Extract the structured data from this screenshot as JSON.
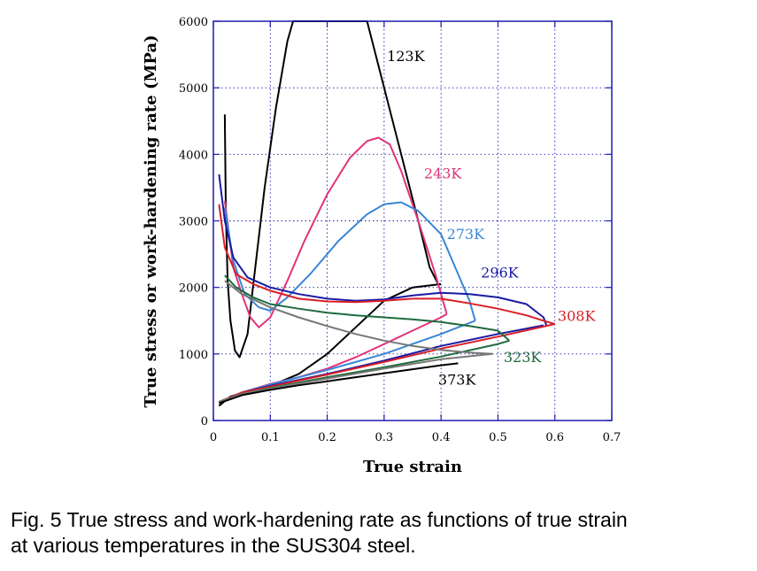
{
  "chart_data": {
    "type": "line",
    "xlabel": "True strain",
    "ylabel": "True stress or work-hardening rate (MPa)",
    "xlim": [
      0,
      0.7
    ],
    "ylim": [
      0,
      6000
    ],
    "xticks": [
      "0",
      "0.1",
      "0.2",
      "0.3",
      "0.4",
      "0.5",
      "0.6",
      "0.7"
    ],
    "yticks": [
      "0",
      "1000",
      "2000",
      "3000",
      "4000",
      "5000",
      "6000"
    ],
    "grid": true,
    "series": [
      {
        "name": "123K",
        "color": "#000000",
        "stress": [
          [
            0.01,
            220
          ],
          [
            0.03,
            360
          ],
          [
            0.06,
            440
          ],
          [
            0.1,
            520
          ],
          [
            0.15,
            700
          ],
          [
            0.2,
            1000
          ],
          [
            0.25,
            1400
          ],
          [
            0.3,
            1800
          ],
          [
            0.35,
            2000
          ],
          [
            0.4,
            2050
          ]
        ],
        "hardening": [
          [
            0.02,
            4600
          ],
          [
            0.022,
            3100
          ],
          [
            0.025,
            2100
          ],
          [
            0.03,
            1500
          ],
          [
            0.038,
            1050
          ],
          [
            0.046,
            950
          ],
          [
            0.06,
            1300
          ],
          [
            0.075,
            2400
          ],
          [
            0.09,
            3500
          ],
          [
            0.11,
            4700
          ],
          [
            0.13,
            5700
          ],
          [
            0.14,
            6000
          ],
          [
            0.27,
            6000
          ],
          [
            0.3,
            5000
          ],
          [
            0.33,
            4000
          ],
          [
            0.36,
            3000
          ],
          [
            0.38,
            2300
          ],
          [
            0.395,
            2050
          ]
        ]
      },
      {
        "name": "243K",
        "color": "#e0337a",
        "stress": [
          [
            0.01,
            260
          ],
          [
            0.05,
            420
          ],
          [
            0.1,
            550
          ],
          [
            0.15,
            650
          ],
          [
            0.2,
            780
          ],
          [
            0.25,
            950
          ],
          [
            0.3,
            1150
          ],
          [
            0.35,
            1350
          ],
          [
            0.4,
            1550
          ],
          [
            0.41,
            1600
          ]
        ],
        "hardening": [
          [
            0.02,
            3300
          ],
          [
            0.035,
            2300
          ],
          [
            0.05,
            1900
          ],
          [
            0.065,
            1550
          ],
          [
            0.08,
            1400
          ],
          [
            0.1,
            1550
          ],
          [
            0.13,
            2100
          ],
          [
            0.16,
            2700
          ],
          [
            0.2,
            3400
          ],
          [
            0.24,
            3950
          ],
          [
            0.27,
            4200
          ],
          [
            0.29,
            4250
          ],
          [
            0.31,
            4150
          ],
          [
            0.33,
            3750
          ],
          [
            0.36,
            3000
          ],
          [
            0.39,
            2200
          ],
          [
            0.41,
            1600
          ]
        ]
      },
      {
        "name": "273K",
        "color": "#3a86d6",
        "stress": [
          [
            0.01,
            270
          ],
          [
            0.05,
            420
          ],
          [
            0.1,
            540
          ],
          [
            0.2,
            760
          ],
          [
            0.3,
            1000
          ],
          [
            0.4,
            1300
          ],
          [
            0.46,
            1500
          ]
        ],
        "hardening": [
          [
            0.02,
            3200
          ],
          [
            0.035,
            2400
          ],
          [
            0.055,
            1900
          ],
          [
            0.08,
            1700
          ],
          [
            0.1,
            1650
          ],
          [
            0.13,
            1850
          ],
          [
            0.17,
            2200
          ],
          [
            0.22,
            2700
          ],
          [
            0.27,
            3100
          ],
          [
            0.3,
            3250
          ],
          [
            0.33,
            3280
          ],
          [
            0.36,
            3150
          ],
          [
            0.4,
            2800
          ],
          [
            0.43,
            2200
          ],
          [
            0.45,
            1800
          ],
          [
            0.46,
            1500
          ]
        ]
      },
      {
        "name": "296K",
        "color": "#1a1aa3",
        "stress": [
          [
            0.01,
            280
          ],
          [
            0.05,
            420
          ],
          [
            0.1,
            520
          ],
          [
            0.2,
            700
          ],
          [
            0.3,
            900
          ],
          [
            0.4,
            1120
          ],
          [
            0.5,
            1300
          ],
          [
            0.58,
            1430
          ]
        ],
        "hardening": [
          [
            0.01,
            3700
          ],
          [
            0.02,
            3000
          ],
          [
            0.035,
            2450
          ],
          [
            0.06,
            2150
          ],
          [
            0.1,
            2000
          ],
          [
            0.15,
            1900
          ],
          [
            0.2,
            1830
          ],
          [
            0.25,
            1800
          ],
          [
            0.3,
            1820
          ],
          [
            0.35,
            1880
          ],
          [
            0.4,
            1920
          ],
          [
            0.45,
            1900
          ],
          [
            0.5,
            1850
          ],
          [
            0.55,
            1750
          ],
          [
            0.58,
            1550
          ],
          [
            0.585,
            1430
          ]
        ]
      },
      {
        "name": "308K",
        "color": "#d81f26",
        "stress": [
          [
            0.01,
            280
          ],
          [
            0.05,
            420
          ],
          [
            0.1,
            510
          ],
          [
            0.2,
            690
          ],
          [
            0.3,
            880
          ],
          [
            0.4,
            1080
          ],
          [
            0.5,
            1260
          ],
          [
            0.6,
            1450
          ]
        ],
        "hardening": [
          [
            0.01,
            3250
          ],
          [
            0.02,
            2600
          ],
          [
            0.04,
            2200
          ],
          [
            0.07,
            2050
          ],
          [
            0.1,
            1950
          ],
          [
            0.15,
            1830
          ],
          [
            0.2,
            1790
          ],
          [
            0.25,
            1780
          ],
          [
            0.3,
            1800
          ],
          [
            0.35,
            1830
          ],
          [
            0.4,
            1830
          ],
          [
            0.45,
            1760
          ],
          [
            0.5,
            1680
          ],
          [
            0.55,
            1580
          ],
          [
            0.58,
            1500
          ],
          [
            0.6,
            1450
          ]
        ]
      },
      {
        "name": "323K",
        "color": "#1e6b3c",
        "stress": [
          [
            0.01,
            280
          ],
          [
            0.05,
            400
          ],
          [
            0.1,
            490
          ],
          [
            0.2,
            650
          ],
          [
            0.3,
            800
          ],
          [
            0.4,
            960
          ],
          [
            0.5,
            1150
          ],
          [
            0.52,
            1200
          ]
        ],
        "hardening": [
          [
            0.02,
            2180
          ],
          [
            0.04,
            2000
          ],
          [
            0.07,
            1850
          ],
          [
            0.1,
            1750
          ],
          [
            0.15,
            1680
          ],
          [
            0.2,
            1620
          ],
          [
            0.25,
            1580
          ],
          [
            0.3,
            1550
          ],
          [
            0.35,
            1520
          ],
          [
            0.4,
            1480
          ],
          [
            0.45,
            1420
          ],
          [
            0.5,
            1350
          ],
          [
            0.52,
            1200
          ]
        ]
      },
      {
        "name": "",
        "color": "#777777",
        "stress": [
          [
            0.01,
            280
          ],
          [
            0.05,
            400
          ],
          [
            0.1,
            480
          ],
          [
            0.2,
            630
          ],
          [
            0.3,
            780
          ],
          [
            0.4,
            920
          ],
          [
            0.49,
            1000
          ]
        ],
        "hardening": [
          [
            0.02,
            2100
          ],
          [
            0.05,
            1900
          ],
          [
            0.1,
            1700
          ],
          [
            0.15,
            1550
          ],
          [
            0.2,
            1420
          ],
          [
            0.25,
            1300
          ],
          [
            0.3,
            1200
          ],
          [
            0.35,
            1120
          ],
          [
            0.4,
            1060
          ],
          [
            0.45,
            1020
          ],
          [
            0.49,
            1000
          ]
        ]
      },
      {
        "name": "373K",
        "color": "#000000",
        "stress": [
          [
            0.01,
            260
          ],
          [
            0.05,
            380
          ],
          [
            0.1,
            460
          ],
          [
            0.15,
            530
          ],
          [
            0.2,
            590
          ],
          [
            0.25,
            650
          ],
          [
            0.3,
            710
          ],
          [
            0.35,
            770
          ],
          [
            0.4,
            830
          ],
          [
            0.43,
            860
          ]
        ],
        "hardening": []
      }
    ]
  },
  "caption": {
    "line1": "Fig. 5  True stress and work-hardening rate as functions of true strain",
    "line2": "at various temperatures in the SUS304 steel."
  }
}
